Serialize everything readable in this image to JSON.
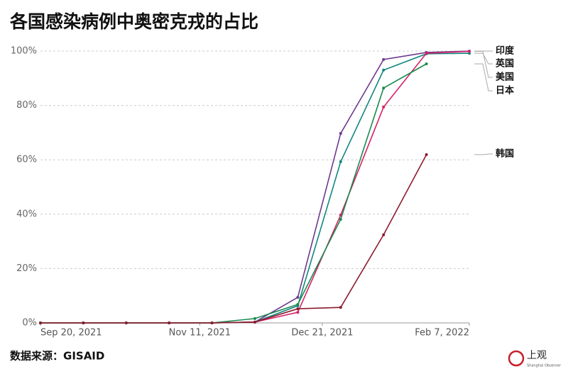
{
  "chart_data": {
    "type": "line",
    "title": "各国感染病例中奥密克戎的占比",
    "source": "数据来源：GISAID",
    "logo": "上观",
    "logo_subtitle": "Shanghai Observer",
    "x": [
      "2021-09-20",
      "2021-10-04",
      "2021-10-18",
      "2021-11-01",
      "2021-11-15",
      "2021-11-29",
      "2021-12-13",
      "2021-12-27",
      "2022-01-10",
      "2022-01-24",
      "2022-02-07"
    ],
    "xlim": [
      "2021-09-20",
      "2022-02-07"
    ],
    "xticks": [
      {
        "value": "2021-09-20",
        "label": "Sep 20, 2021"
      },
      {
        "value": "2021-11-11",
        "label": "Nov 11, 2021"
      },
      {
        "value": "2021-12-21",
        "label": "Dec 21, 2021"
      },
      {
        "value": "2022-02-07",
        "label": "Feb 7, 2022"
      }
    ],
    "ylim": [
      0,
      100
    ],
    "yticks": [
      {
        "value": 0,
        "label": "0%"
      },
      {
        "value": 20,
        "label": "20%"
      },
      {
        "value": 40,
        "label": "40%"
      },
      {
        "value": 60,
        "label": "60%"
      },
      {
        "value": 80,
        "label": "80%"
      },
      {
        "value": 100,
        "label": "100%"
      }
    ],
    "grid": true,
    "series": [
      {
        "name": "印度",
        "color": "#6e3a8e",
        "values": [
          0,
          0,
          0,
          0,
          0,
          0.3,
          9.4,
          69.7,
          96.9,
          99.5,
          100
        ]
      },
      {
        "name": "英国",
        "color": "#12877f",
        "values": [
          0,
          0,
          0,
          0,
          0,
          0.3,
          6.3,
          59.3,
          93,
          99,
          99.2
        ]
      },
      {
        "name": "美国",
        "color": "#d6226a",
        "values": [
          0,
          0,
          0,
          0,
          0,
          0.3,
          3.9,
          39.7,
          79.4,
          99.2,
          99.9
        ]
      },
      {
        "name": "日本",
        "color": "#1a8a4e",
        "values": [
          0,
          0,
          0,
          0,
          0,
          1.6,
          6.8,
          38.1,
          86.4,
          95.3,
          null
        ]
      },
      {
        "name": "韩国",
        "color": "#8c1c2c",
        "values": [
          0,
          0,
          0,
          0,
          0,
          0.3,
          5.2,
          5.7,
          32.4,
          61.9,
          null
        ]
      }
    ]
  }
}
